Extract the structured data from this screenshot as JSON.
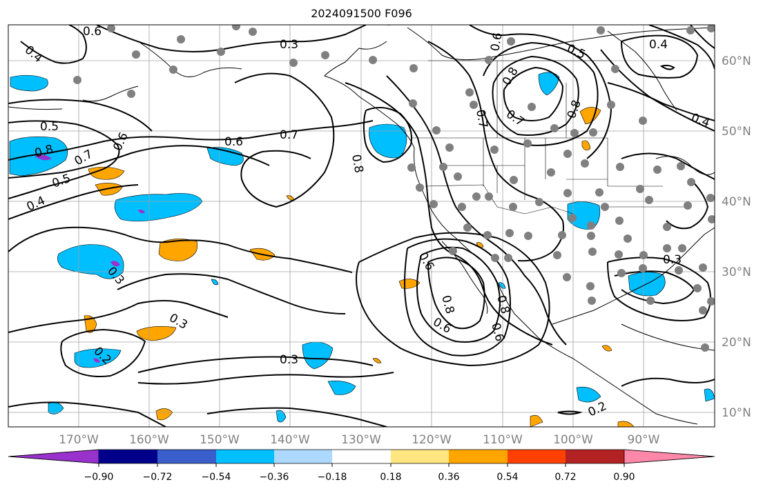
{
  "title": "2024091500 F096",
  "map": {
    "lon_labels": [
      "170°W",
      "160°W",
      "150°W",
      "140°W",
      "130°W",
      "120°W",
      "110°W",
      "100°W",
      "90°W"
    ],
    "lat_labels": [
      "60°N",
      "50°N",
      "40°N",
      "30°N",
      "20°N",
      "10°N"
    ],
    "contour_labels": [
      "0.6",
      "0.3",
      "0.4",
      "0.5",
      "0.4",
      "0.5",
      "0.8",
      "0.7",
      "0.6",
      "0.5",
      "0.7",
      "0.6",
      "0.4",
      "0.3",
      "0.6",
      "0.7",
      "0.8",
      "0.8",
      "0.8",
      "0.8",
      "0.7",
      "0.6",
      "0.3",
      "0.3",
      "0.2",
      "0.2",
      "0.3",
      "0.8",
      "0.6",
      "0.6",
      "0.4"
    ],
    "contour_color": "#000000",
    "grid_color": "#808080",
    "station_color": "#808080"
  },
  "colorbar": {
    "tick_labels": [
      "−0.90",
      "−0.72",
      "−0.54",
      "−0.36",
      "−0.18",
      "0.18",
      "0.36",
      "0.54",
      "0.72",
      "0.90"
    ],
    "colors": [
      "#9932cc",
      "#00008b",
      "#3a5fcd",
      "#00bfff",
      "#add8ff",
      "#ffffff",
      "#ffe680",
      "#ffa500",
      "#ff4000",
      "#b22222",
      "#ff88aa"
    ]
  }
}
